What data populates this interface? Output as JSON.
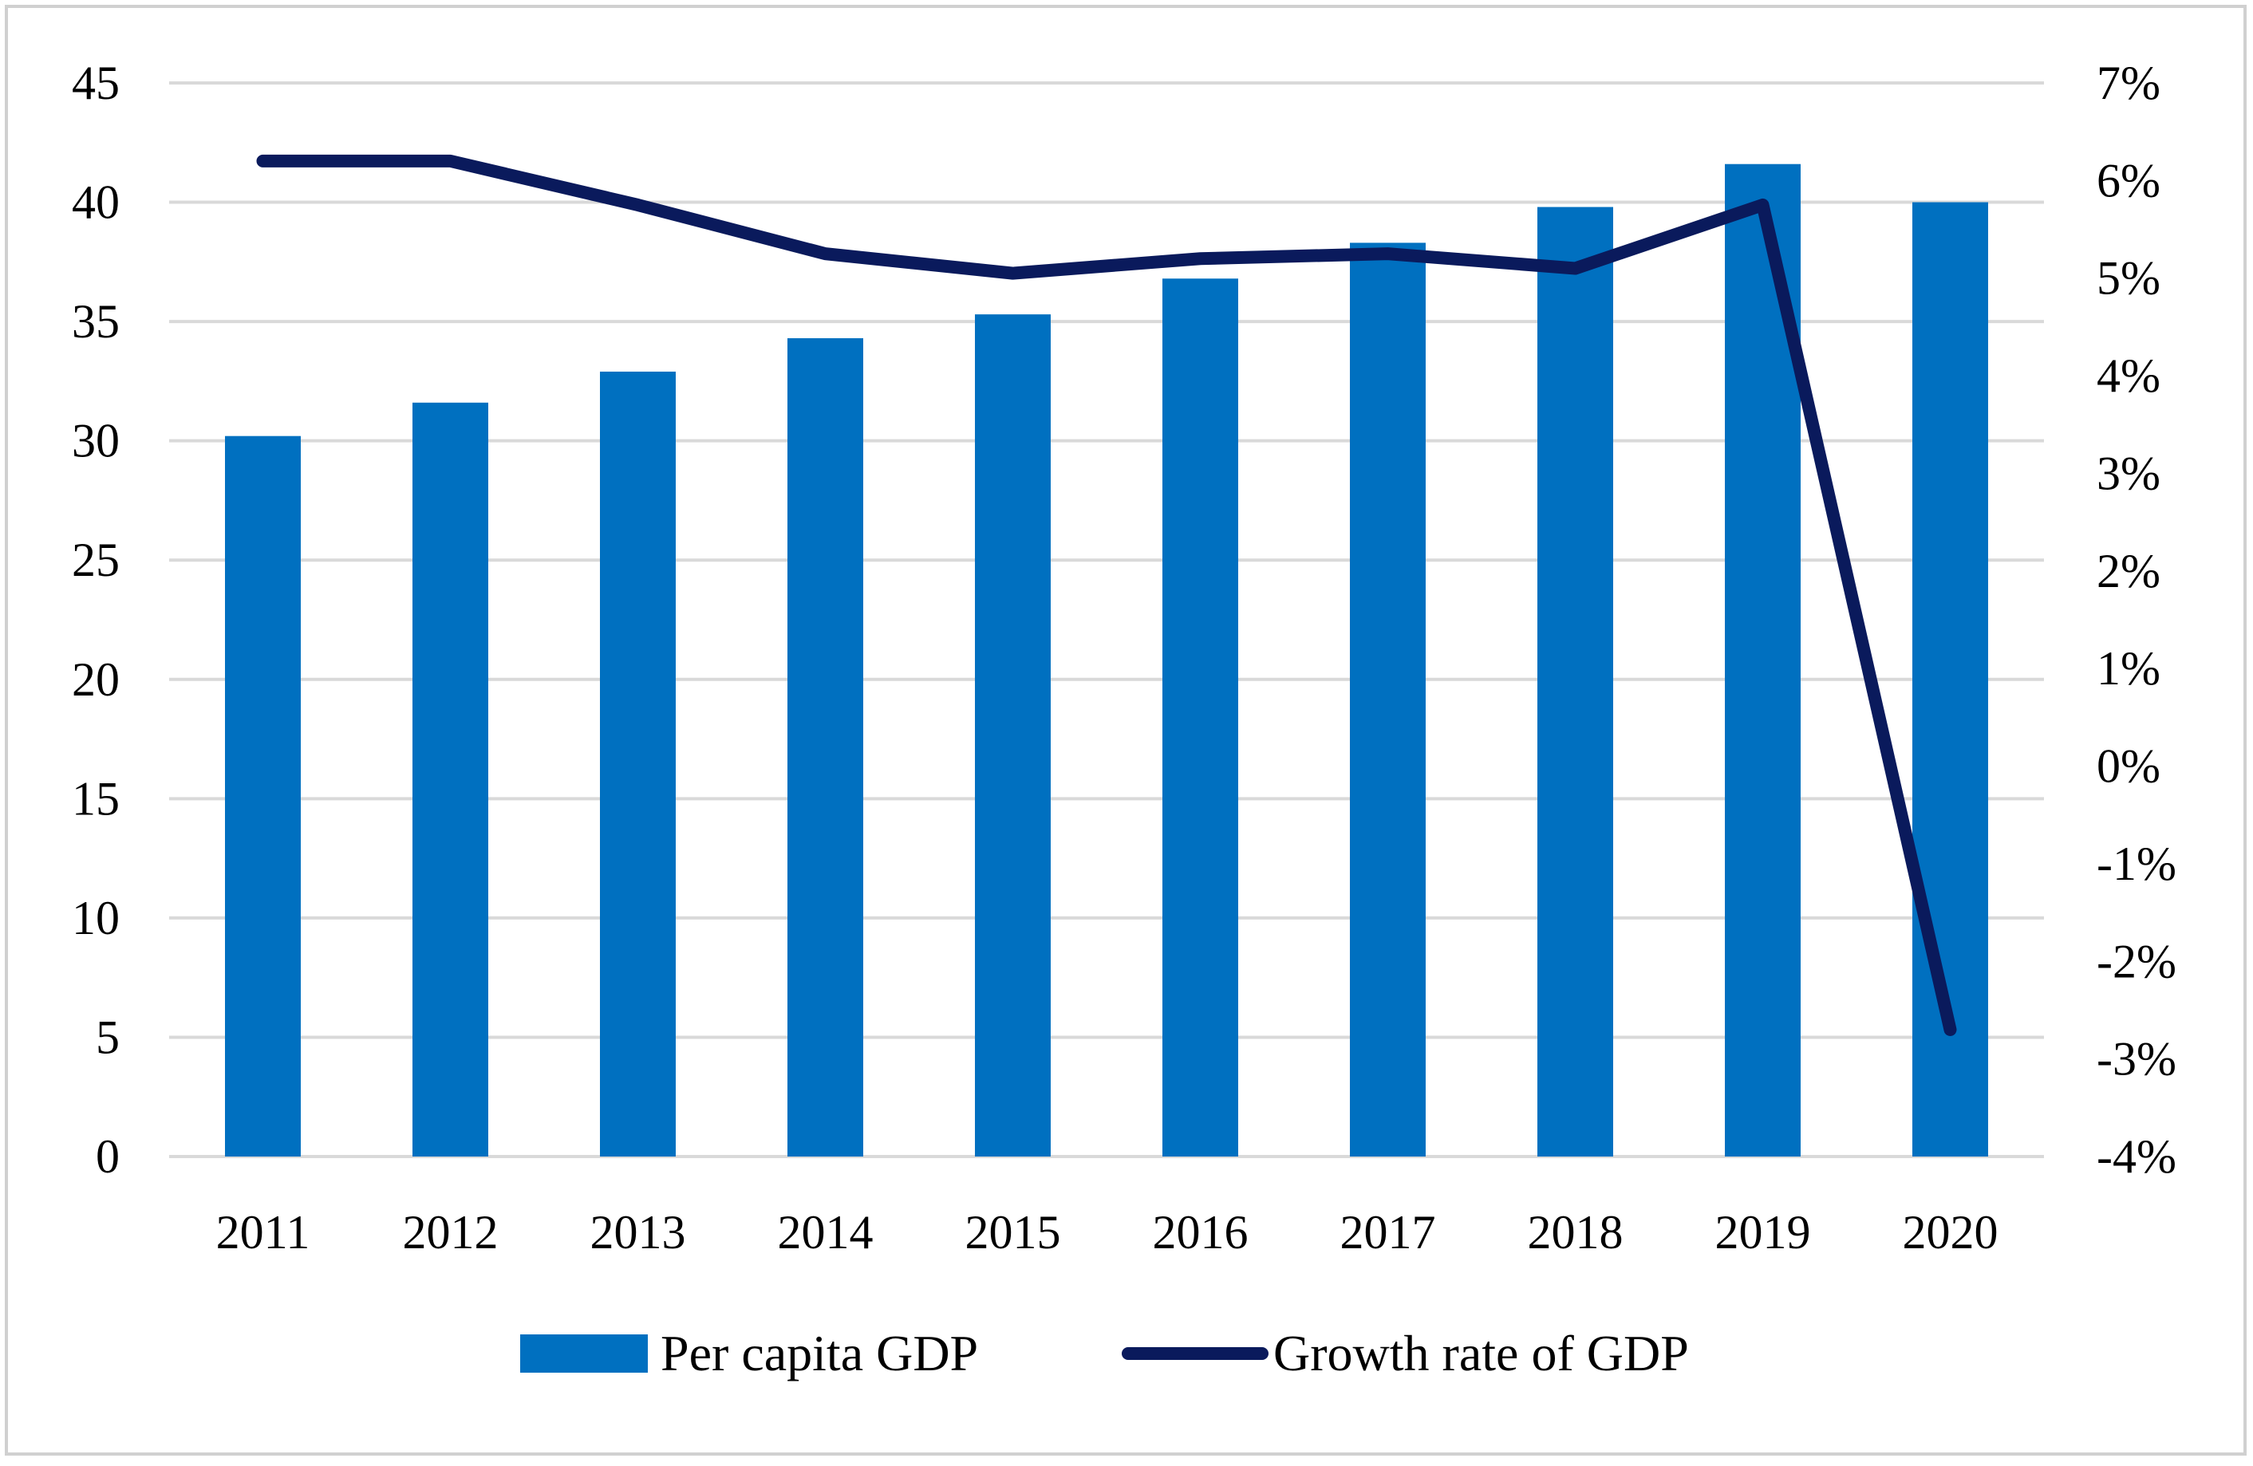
{
  "chart_data": {
    "type": "bar+line",
    "title": "",
    "categories": [
      "2011",
      "2012",
      "2013",
      "2014",
      "2015",
      "2016",
      "2017",
      "2018",
      "2019",
      "2020"
    ],
    "series": [
      {
        "name": "Per capita GDP",
        "type": "bar",
        "axis": "left",
        "values": [
          30.2,
          31.6,
          32.9,
          34.3,
          35.3,
          36.8,
          38.3,
          39.8,
          41.6,
          40.0
        ]
      },
      {
        "name": "Growth rate of GDP",
        "type": "line",
        "axis": "right",
        "values": [
          6.2,
          6.2,
          5.75,
          5.25,
          5.05,
          5.2,
          5.25,
          5.1,
          5.75,
          -2.7
        ]
      }
    ],
    "y_left": {
      "min": 0,
      "max": 45,
      "step": 5,
      "ticks": [
        "0",
        "5",
        "10",
        "15",
        "20",
        "25",
        "30",
        "35",
        "40",
        "45"
      ]
    },
    "y_right": {
      "min": -4,
      "max": 7,
      "step": 1,
      "ticks": [
        "-4%",
        "-3%",
        "-2%",
        "-1%",
        "0%",
        "1%",
        "2%",
        "3%",
        "4%",
        "5%",
        "6%",
        "7%"
      ]
    },
    "xlabel": "",
    "ylabel": "",
    "grid": true,
    "legend_position": "bottom",
    "colors": {
      "bar": "#0070c0",
      "line": "#0a1a5c",
      "grid": "#d9d9d9",
      "border": "#d0d0d0"
    }
  }
}
